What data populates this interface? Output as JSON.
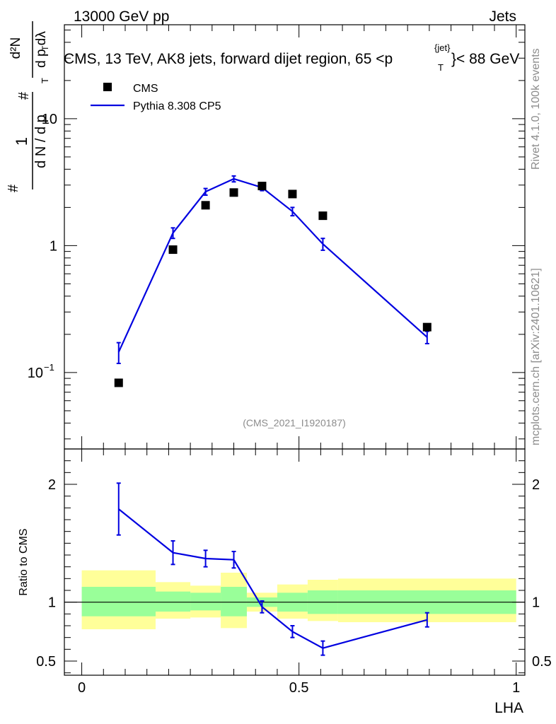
{
  "header": {
    "energy_label": "13000 GeV pp",
    "process_label": "Jets",
    "title_main": "CMS, 13 TeV, AK8 jets, forward dijet region, 65 <p",
    "title_sup": "{jet}",
    "title_sub": "T",
    "title_end": "}< 88 GeV"
  },
  "side": {
    "rivet": "Rivet 4.1.0,  100k events",
    "mcplots": "mcplots.cern.ch [arXiv:2401.10621]"
  },
  "watermark": "(CMS_2021_I1920187)",
  "legend": {
    "data_label": "CMS",
    "mc_label": "Pythia 8.308 CP5"
  },
  "colors": {
    "mc": "#0000e0",
    "band_inner": "#99ff99",
    "band_outer": "#ffff99",
    "data": "#000000"
  },
  "chart_data": [
    {
      "type": "scatter",
      "name": "main",
      "title": "CMS, 13 TeV, AK8 jets, forward dijet region, 65 <p_T^{jet}< 88 GeV",
      "xlabel": "LHA",
      "ylabel": "1/dN/dp_T d^2N/dp_T dλ",
      "yscale": "log",
      "xlim": [
        -0.04,
        1.02
      ],
      "ylim": [
        0.025,
        55
      ],
      "ytick_labels": [
        "10^-1",
        "1",
        "10"
      ],
      "series": [
        {
          "name": "CMS",
          "x": [
            0.085,
            0.21,
            0.285,
            0.35,
            0.415,
            0.485,
            0.555,
            0.795
          ],
          "y": [
            0.083,
            0.93,
            2.08,
            2.62,
            2.95,
            2.55,
            1.72,
            0.228
          ]
        },
        {
          "name": "Pythia 8.308 CP5",
          "x": [
            0.085,
            0.21,
            0.285,
            0.35,
            0.415,
            0.485,
            0.555,
            0.795
          ],
          "y": [
            0.145,
            1.26,
            2.66,
            3.36,
            2.87,
            1.86,
            1.03,
            0.19
          ],
          "err": [
            0.027,
            0.12,
            0.16,
            0.18,
            0.16,
            0.14,
            0.11,
            0.021
          ]
        }
      ]
    },
    {
      "type": "line",
      "name": "ratio",
      "xlabel": "LHA",
      "ylabel": "Ratio to CMS",
      "xlim": [
        -0.04,
        1.02
      ],
      "ylim": [
        0.38,
        2.3
      ],
      "xtick_labels": [
        "0",
        "0.5",
        "1"
      ],
      "ytick_labels": [
        "0.5",
        "1",
        "2"
      ],
      "series": [
        {
          "name": "Pythia 8.308 CP5",
          "x": [
            0.085,
            0.21,
            0.285,
            0.35,
            0.415,
            0.485,
            0.555,
            0.795
          ],
          "y": [
            1.79,
            1.42,
            1.37,
            1.36,
            0.96,
            0.75,
            0.61,
            0.85
          ],
          "err": [
            0.22,
            0.1,
            0.07,
            0.07,
            0.05,
            0.05,
            0.06,
            0.06
          ]
        }
      ],
      "bands": {
        "edges": [
          0.0,
          0.17,
          0.25,
          0.32,
          0.38,
          0.45,
          0.52,
          0.59,
          1.0
        ],
        "inner_lo": [
          0.88,
          0.92,
          0.93,
          0.88,
          0.96,
          0.92,
          0.9,
          0.9
        ],
        "inner_hi": [
          1.13,
          1.09,
          1.08,
          1.13,
          1.04,
          1.08,
          1.1,
          1.1
        ],
        "outer_lo": [
          0.77,
          0.86,
          0.87,
          0.78,
          0.92,
          0.86,
          0.84,
          0.83
        ],
        "outer_hi": [
          1.27,
          1.17,
          1.14,
          1.25,
          1.08,
          1.15,
          1.19,
          1.2
        ]
      }
    }
  ]
}
